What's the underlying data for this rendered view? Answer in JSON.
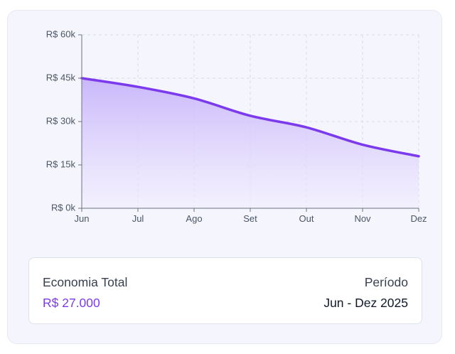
{
  "chart_data": {
    "type": "area",
    "categories": [
      "Jun",
      "Jul",
      "Ago",
      "Set",
      "Out",
      "Nov",
      "Dez"
    ],
    "values": [
      45000,
      42000,
      38000,
      32000,
      28000,
      22000,
      18000
    ],
    "title": "",
    "xlabel": "",
    "ylabel": "",
    "ylim": [
      0,
      60000
    ],
    "yticks": [
      0,
      15000,
      30000,
      45000,
      60000
    ],
    "ytick_labels": [
      "R$ 0k",
      "R$ 15k",
      "R$ 30k",
      "R$ 45k",
      "R$ 60k"
    ],
    "grid": true,
    "legend": "none",
    "colors": {
      "line": "#7c3aed",
      "fill_top": "#c4b0fa",
      "fill_bottom": "#f1ecfe",
      "grid": "#d9dce6",
      "axis": "#6b7280"
    }
  },
  "summary": {
    "savings_label": "Economia Total",
    "savings_value": "R$ 27.000",
    "period_label": "Período",
    "period_value": "Jun - Dez 2025"
  }
}
